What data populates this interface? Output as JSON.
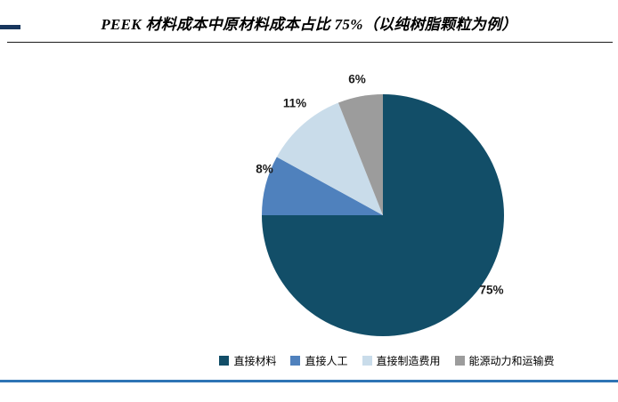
{
  "header": {
    "title": "PEEK 材料成本中原材料成本占比 75%（以纯树脂颗粒为例）"
  },
  "accent_colors": {
    "corner_mark": "#17365d",
    "bottom_rule": "#2e74b5",
    "title_rule": "#1a1a1a"
  },
  "chart_data": {
    "type": "pie",
    "title": "PEEK 材料成本中原材料成本占比 75%（以纯树脂颗粒为例）",
    "legend_position": "bottom",
    "start_angle_deg": 0,
    "direction": "clockwise",
    "segments": [
      {
        "name": "直接材料",
        "value": 75,
        "label": "75%",
        "color": "#124e68"
      },
      {
        "name": "直接人工",
        "value": 8,
        "label": "8%",
        "color": "#4f81bd"
      },
      {
        "name": "直接制造费用",
        "value": 11,
        "label": "11%",
        "color": "#c9dcea"
      },
      {
        "name": "能源动力和运输费",
        "value": 6,
        "label": "6%",
        "color": "#9c9c9c"
      }
    ]
  }
}
